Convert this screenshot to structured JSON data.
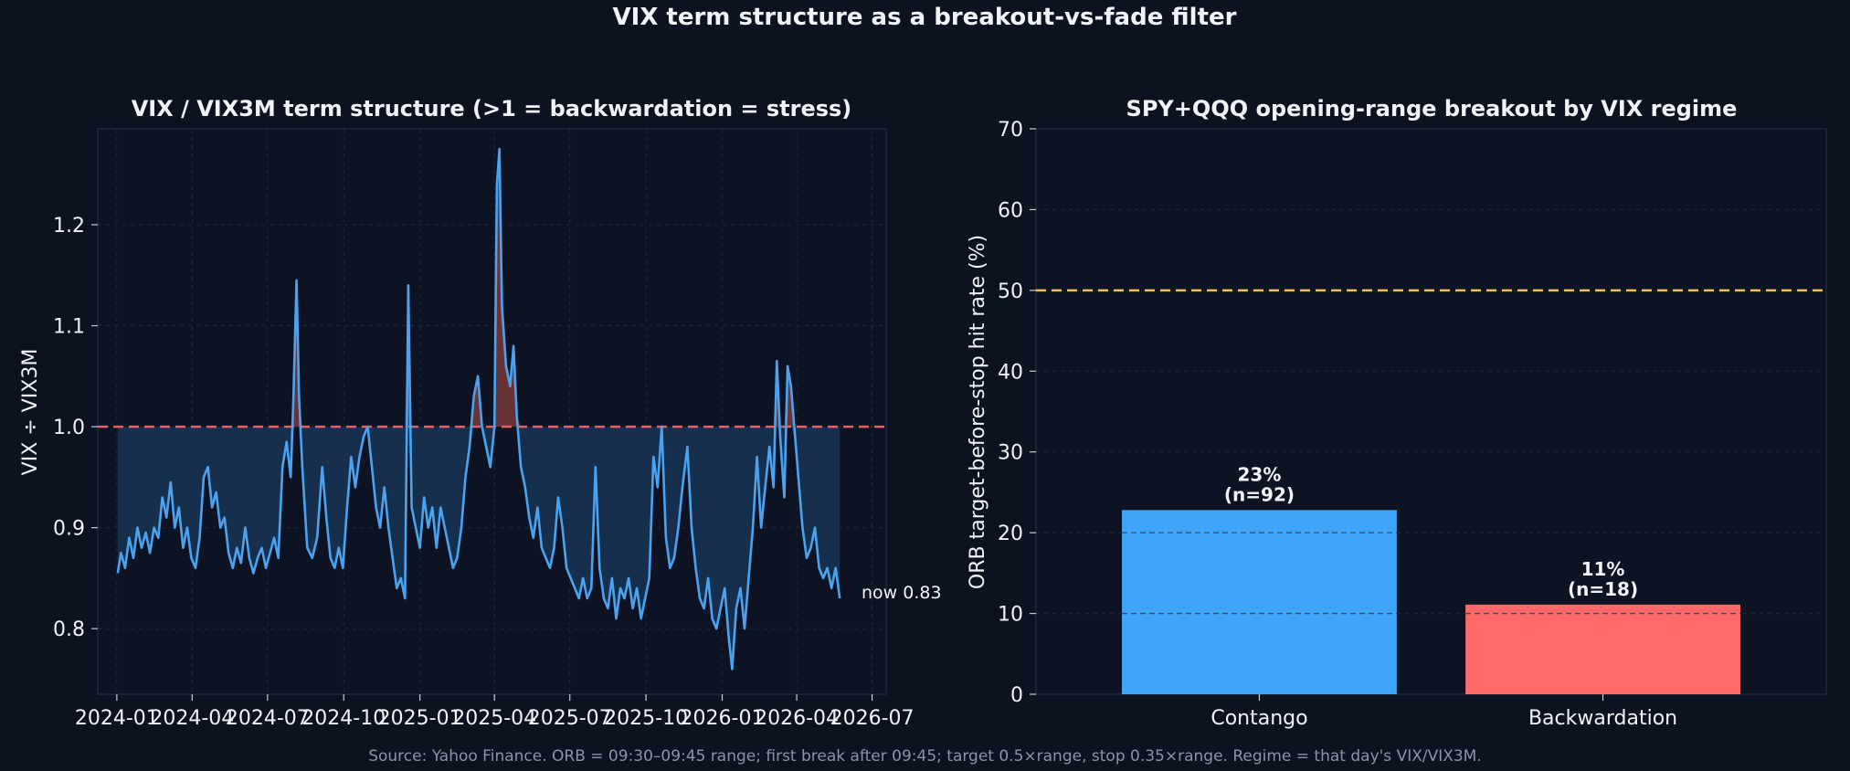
{
  "suptitle": "VIX term structure as a breakout-vs-fade filter",
  "footer": "Source: Yahoo Finance. ORB = 09:30–09:45 range; first break after 09:45; target 0.5×range, stop 0.35×range. Regime = that day's VIX/VIX3M.",
  "colors": {
    "background": "#0c1220",
    "panel": "#0d1322",
    "line": "#4aa3f0",
    "fill": "#17304f",
    "stress_fill": "#7a3a3a",
    "threshold": "#e36166",
    "breakeven": "#f2bf57",
    "bar_contango": "#3ea5fb",
    "bar_backwardation": "#fe6a6a",
    "text": "#f0f3f7"
  },
  "chart_data": [
    {
      "type": "line",
      "title": "VIX / VIX3M term structure  (>1 = backwardation = stress)",
      "xlabel": "",
      "ylabel": "VIX ÷ VIX3M",
      "x_ticks": [
        "2024-01",
        "2024-04",
        "2024-07",
        "2024-10",
        "2025-01",
        "2025-04",
        "2025-07",
        "2025-10",
        "2026-01",
        "2026-04",
        "2026-07"
      ],
      "y_ticks": [
        "0.8",
        "0.9",
        "1.0",
        "1.1",
        "1.2"
      ],
      "xlim": [
        "2023-12-09",
        "2026-07-18"
      ],
      "ylim": [
        0.735,
        1.295
      ],
      "threshold": 1.0,
      "annotation": "now 0.83",
      "grid": true,
      "series": [
        {
          "points": [
            [
              "2024-01-02",
              0.855
            ],
            [
              "2024-01-06",
              0.875
            ],
            [
              "2024-01-11",
              0.86
            ],
            [
              "2024-01-16",
              0.89
            ],
            [
              "2024-01-21",
              0.87
            ],
            [
              "2024-01-26",
              0.9
            ],
            [
              "2024-01-31",
              0.88
            ],
            [
              "2024-02-05",
              0.895
            ],
            [
              "2024-02-10",
              0.875
            ],
            [
              "2024-02-15",
              0.9
            ],
            [
              "2024-02-20",
              0.89
            ],
            [
              "2024-02-25",
              0.93
            ],
            [
              "2024-03-01",
              0.91
            ],
            [
              "2024-03-06",
              0.945
            ],
            [
              "2024-03-11",
              0.9
            ],
            [
              "2024-03-16",
              0.92
            ],
            [
              "2024-03-21",
              0.88
            ],
            [
              "2024-03-26",
              0.9
            ],
            [
              "2024-03-31",
              0.87
            ],
            [
              "2024-04-05",
              0.86
            ],
            [
              "2024-04-10",
              0.89
            ],
            [
              "2024-04-15",
              0.95
            ],
            [
              "2024-04-20",
              0.96
            ],
            [
              "2024-04-25",
              0.92
            ],
            [
              "2024-04-30",
              0.935
            ],
            [
              "2024-05-05",
              0.9
            ],
            [
              "2024-05-10",
              0.91
            ],
            [
              "2024-05-15",
              0.875
            ],
            [
              "2024-05-20",
              0.86
            ],
            [
              "2024-05-25",
              0.88
            ],
            [
              "2024-05-30",
              0.865
            ],
            [
              "2024-06-04",
              0.9
            ],
            [
              "2024-06-09",
              0.87
            ],
            [
              "2024-06-14",
              0.855
            ],
            [
              "2024-06-19",
              0.87
            ],
            [
              "2024-06-24",
              0.88
            ],
            [
              "2024-06-29",
              0.86
            ],
            [
              "2024-07-04",
              0.875
            ],
            [
              "2024-07-09",
              0.89
            ],
            [
              "2024-07-14",
              0.87
            ],
            [
              "2024-07-19",
              0.96
            ],
            [
              "2024-07-24",
              0.985
            ],
            [
              "2024-07-29",
              0.95
            ],
            [
              "2024-08-01",
              1.02
            ],
            [
              "2024-08-05",
              1.145
            ],
            [
              "2024-08-08",
              1.03
            ],
            [
              "2024-08-12",
              0.96
            ],
            [
              "2024-08-18",
              0.88
            ],
            [
              "2024-08-24",
              0.87
            ],
            [
              "2024-08-30",
              0.89
            ],
            [
              "2024-09-05",
              0.96
            ],
            [
              "2024-09-10",
              0.91
            ],
            [
              "2024-09-15",
              0.87
            ],
            [
              "2024-09-20",
              0.86
            ],
            [
              "2024-09-25",
              0.88
            ],
            [
              "2024-09-30",
              0.86
            ],
            [
              "2024-10-05",
              0.92
            ],
            [
              "2024-10-10",
              0.97
            ],
            [
              "2024-10-15",
              0.94
            ],
            [
              "2024-10-20",
              0.97
            ],
            [
              "2024-10-25",
              0.99
            ],
            [
              "2024-10-30",
              1.0
            ],
            [
              "2024-11-04",
              0.96
            ],
            [
              "2024-11-09",
              0.92
            ],
            [
              "2024-11-14",
              0.9
            ],
            [
              "2024-11-19",
              0.94
            ],
            [
              "2024-11-24",
              0.9
            ],
            [
              "2024-11-29",
              0.87
            ],
            [
              "2024-12-04",
              0.84
            ],
            [
              "2024-12-09",
              0.85
            ],
            [
              "2024-12-14",
              0.83
            ],
            [
              "2024-12-18",
              1.14
            ],
            [
              "2024-12-22",
              0.92
            ],
            [
              "2024-12-27",
              0.9
            ],
            [
              "2025-01-01",
              0.88
            ],
            [
              "2025-01-06",
              0.93
            ],
            [
              "2025-01-11",
              0.9
            ],
            [
              "2025-01-16",
              0.92
            ],
            [
              "2025-01-21",
              0.88
            ],
            [
              "2025-01-26",
              0.92
            ],
            [
              "2025-01-31",
              0.9
            ],
            [
              "2025-02-05",
              0.88
            ],
            [
              "2025-02-10",
              0.86
            ],
            [
              "2025-02-15",
              0.87
            ],
            [
              "2025-02-20",
              0.9
            ],
            [
              "2025-02-25",
              0.95
            ],
            [
              "2025-03-02",
              0.98
            ],
            [
              "2025-03-07",
              1.03
            ],
            [
              "2025-03-12",
              1.05
            ],
            [
              "2025-03-17",
              1.0
            ],
            [
              "2025-03-22",
              0.98
            ],
            [
              "2025-03-27",
              0.96
            ],
            [
              "2025-04-01",
              1.0
            ],
            [
              "2025-04-04",
              1.24
            ],
            [
              "2025-04-07",
              1.275
            ],
            [
              "2025-04-10",
              1.12
            ],
            [
              "2025-04-15",
              1.06
            ],
            [
              "2025-04-20",
              1.04
            ],
            [
              "2025-04-24",
              1.08
            ],
            [
              "2025-04-28",
              1.01
            ],
            [
              "2025-05-03",
              0.96
            ],
            [
              "2025-05-08",
              0.94
            ],
            [
              "2025-05-13",
              0.91
            ],
            [
              "2025-05-18",
              0.89
            ],
            [
              "2025-05-23",
              0.92
            ],
            [
              "2025-05-28",
              0.88
            ],
            [
              "2025-06-02",
              0.87
            ],
            [
              "2025-06-07",
              0.86
            ],
            [
              "2025-06-12",
              0.88
            ],
            [
              "2025-06-17",
              0.93
            ],
            [
              "2025-06-22",
              0.9
            ],
            [
              "2025-06-27",
              0.86
            ],
            [
              "2025-07-02",
              0.85
            ],
            [
              "2025-07-07",
              0.84
            ],
            [
              "2025-07-12",
              0.83
            ],
            [
              "2025-07-17",
              0.85
            ],
            [
              "2025-07-22",
              0.83
            ],
            [
              "2025-07-27",
              0.84
            ],
            [
              "2025-08-01",
              0.96
            ],
            [
              "2025-08-06",
              0.86
            ],
            [
              "2025-08-11",
              0.83
            ],
            [
              "2025-08-16",
              0.82
            ],
            [
              "2025-08-21",
              0.85
            ],
            [
              "2025-08-26",
              0.81
            ],
            [
              "2025-08-31",
              0.84
            ],
            [
              "2025-09-05",
              0.83
            ],
            [
              "2025-09-10",
              0.85
            ],
            [
              "2025-09-15",
              0.82
            ],
            [
              "2025-09-20",
              0.84
            ],
            [
              "2025-09-25",
              0.81
            ],
            [
              "2025-09-30",
              0.83
            ],
            [
              "2025-10-05",
              0.85
            ],
            [
              "2025-10-10",
              0.97
            ],
            [
              "2025-10-15",
              0.94
            ],
            [
              "2025-10-20",
              1.0
            ],
            [
              "2025-10-25",
              0.89
            ],
            [
              "2025-10-30",
              0.86
            ],
            [
              "2025-11-04",
              0.87
            ],
            [
              "2025-11-09",
              0.9
            ],
            [
              "2025-11-14",
              0.94
            ],
            [
              "2025-11-20",
              0.98
            ],
            [
              "2025-11-25",
              0.9
            ],
            [
              "2025-11-30",
              0.86
            ],
            [
              "2025-12-05",
              0.83
            ],
            [
              "2025-12-10",
              0.82
            ],
            [
              "2025-12-15",
              0.85
            ],
            [
              "2025-12-20",
              0.81
            ],
            [
              "2025-12-25",
              0.8
            ],
            [
              "2025-12-30",
              0.82
            ],
            [
              "2026-01-04",
              0.84
            ],
            [
              "2026-01-09",
              0.79
            ],
            [
              "2026-01-13",
              0.76
            ],
            [
              "2026-01-18",
              0.82
            ],
            [
              "2026-01-23",
              0.84
            ],
            [
              "2026-01-28",
              0.8
            ],
            [
              "2026-02-02",
              0.85
            ],
            [
              "2026-02-07",
              0.9
            ],
            [
              "2026-02-12",
              0.97
            ],
            [
              "2026-02-17",
              0.9
            ],
            [
              "2026-02-22",
              0.94
            ],
            [
              "2026-02-27",
              0.98
            ],
            [
              "2026-03-04",
              0.94
            ],
            [
              "2026-03-08",
              1.065
            ],
            [
              "2026-03-12",
              0.99
            ],
            [
              "2026-03-17",
              0.93
            ],
            [
              "2026-03-21",
              1.06
            ],
            [
              "2026-03-25",
              1.04
            ],
            [
              "2026-03-30",
              0.99
            ],
            [
              "2026-04-03",
              0.95
            ],
            [
              "2026-04-08",
              0.9
            ],
            [
              "2026-04-13",
              0.87
            ],
            [
              "2026-04-18",
              0.88
            ],
            [
              "2026-04-23",
              0.9
            ],
            [
              "2026-04-28",
              0.86
            ],
            [
              "2026-05-03",
              0.85
            ],
            [
              "2026-05-08",
              0.86
            ],
            [
              "2026-05-13",
              0.84
            ],
            [
              "2026-05-18",
              0.86
            ],
            [
              "2026-05-23",
              0.83
            ]
          ]
        }
      ]
    },
    {
      "type": "bar",
      "title": "SPY+QQQ opening-range breakout by VIX regime",
      "xlabel": "",
      "ylabel": "ORB target-before-stop hit rate (%)",
      "categories": [
        "Contango",
        "Backwardation"
      ],
      "values": [
        22.8,
        11.1
      ],
      "labels": [
        "23%\n(n=92)",
        "11%\n(n=18)"
      ],
      "y_ticks": [
        "0",
        "10",
        "20",
        "30",
        "40",
        "50",
        "60",
        "70"
      ],
      "ylim": [
        0,
        70
      ],
      "reference_line": 50,
      "grid": true
    }
  ]
}
